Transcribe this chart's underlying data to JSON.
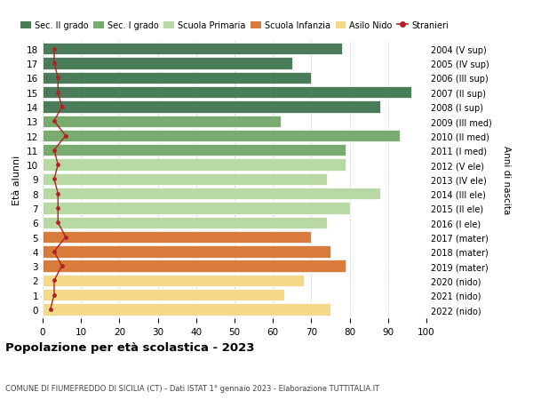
{
  "ages": [
    18,
    17,
    16,
    15,
    14,
    13,
    12,
    11,
    10,
    9,
    8,
    7,
    6,
    5,
    4,
    3,
    2,
    1,
    0
  ],
  "years": [
    "2004 (V sup)",
    "2005 (IV sup)",
    "2006 (III sup)",
    "2007 (II sup)",
    "2008 (I sup)",
    "2009 (III med)",
    "2010 (II med)",
    "2011 (I med)",
    "2012 (V ele)",
    "2013 (IV ele)",
    "2014 (III ele)",
    "2015 (II ele)",
    "2016 (I ele)",
    "2017 (mater)",
    "2018 (mater)",
    "2019 (mater)",
    "2020 (nido)",
    "2021 (nido)",
    "2022 (nido)"
  ],
  "values": [
    78,
    65,
    70,
    96,
    88,
    62,
    93,
    79,
    79,
    74,
    88,
    80,
    74,
    70,
    75,
    79,
    68,
    63,
    75
  ],
  "stranieri": [
    3,
    3,
    4,
    4,
    5,
    3,
    6,
    3,
    4,
    3,
    4,
    4,
    4,
    6,
    3,
    5,
    3,
    3,
    2
  ],
  "bar_colors": [
    "#4a7c59",
    "#4a7c59",
    "#4a7c59",
    "#4a7c59",
    "#4a7c59",
    "#7aab6e",
    "#7aab6e",
    "#7aab6e",
    "#b8d9a4",
    "#b8d9a4",
    "#b8d9a4",
    "#b8d9a4",
    "#b8d9a4",
    "#d97b3a",
    "#d97b3a",
    "#d97b3a",
    "#f5d98b",
    "#f5d98b",
    "#f5d98b"
  ],
  "stranieri_color": "#b22222",
  "legend_labels": [
    "Sec. II grado",
    "Sec. I grado",
    "Scuola Primaria",
    "Scuola Infanzia",
    "Asilo Nido",
    "Stranieri"
  ],
  "legend_colors": [
    "#4a7c59",
    "#7aab6e",
    "#b8d9a4",
    "#d97b3a",
    "#f5d98b",
    "#b22222"
  ],
  "ylabel_label": "Età alunni",
  "right_ylabel": "Anni di nascita",
  "title": "Popolazione per età scolastica - 2023",
  "subtitle": "COMUNE DI FIUMEFREDDO DI SICILIA (CT) - Dati ISTAT 1° gennaio 2023 - Elaborazione TUTTITALIA.IT",
  "xlim": [
    0,
    100
  ],
  "xticks": [
    0,
    10,
    20,
    30,
    40,
    50,
    60,
    70,
    80,
    90,
    100
  ],
  "grid_color": "#cccccc"
}
